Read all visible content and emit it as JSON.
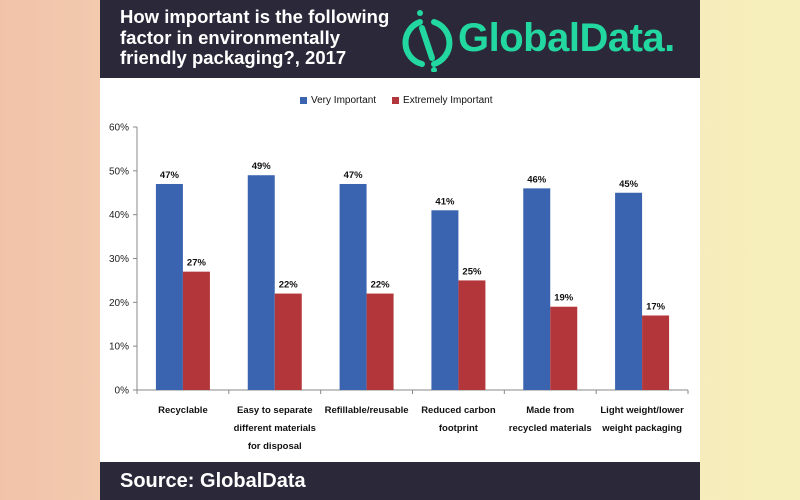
{
  "header": {
    "title": "How important is the following factor in environmentally friendly packaging?, 2017",
    "logo": "GlobalData."
  },
  "footer": {
    "source": "Source: GlobalData"
  },
  "colors": {
    "very_important": "#3b64b0",
    "extremely_important": "#b3373a",
    "header_bg": "#2b2839",
    "logo": "#22d8a0"
  },
  "chart_data": {
    "type": "bar",
    "title": "How important is the following factor in environmentally friendly packaging?, 2017",
    "categories": [
      [
        "Recyclable"
      ],
      [
        "Easy to separate",
        "different materials",
        "for disposal"
      ],
      [
        "Refillable/reusable"
      ],
      [
        "Reduced carbon",
        "footprint"
      ],
      [
        "Made from",
        "recycled materials"
      ],
      [
        "Light weight/lower",
        "weight packaging"
      ]
    ],
    "series": [
      {
        "name": "Very Important",
        "values": [
          47,
          49,
          47,
          41,
          46,
          45
        ]
      },
      {
        "name": "Extremely Important",
        "values": [
          27,
          22,
          22,
          25,
          19,
          17
        ]
      }
    ],
    "ylim": [
      0,
      60
    ],
    "yticks": [
      "0%",
      "10%",
      "20%",
      "30%",
      "40%",
      "50%",
      "60%"
    ],
    "legend": "top",
    "grid": false,
    "data_labels": true
  }
}
